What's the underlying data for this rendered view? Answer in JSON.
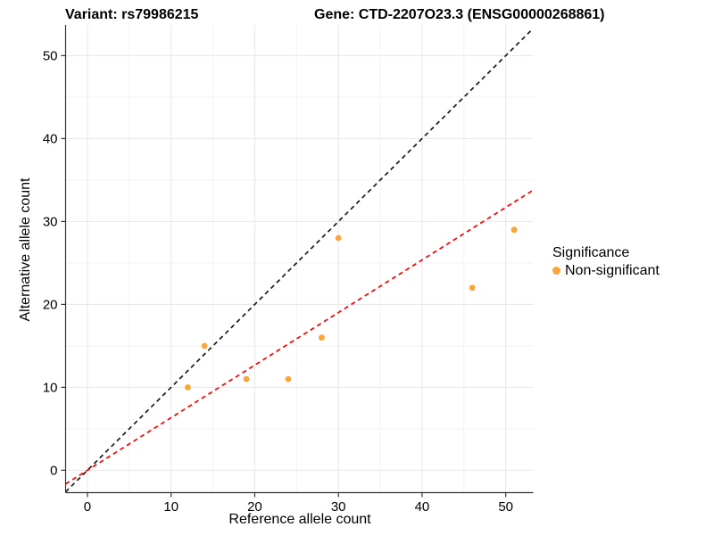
{
  "header": {
    "variant_title": "Variant: rs79986215",
    "gene_title": "Gene: CTD-2207O23.3 (ENSG00000268861)"
  },
  "legend": {
    "title": "Significance",
    "items": [
      {
        "label": "Non-significant",
        "color": "#FAA43A"
      }
    ]
  },
  "chart_data": {
    "type": "scatter",
    "title": "Variant: rs79986215  /  Gene: CTD-2207O23.3 (ENSG00000268861)",
    "xlabel": "Reference allele count",
    "ylabel": "Alternative allele count",
    "xlim": [
      -2.61,
      53.29
    ],
    "ylim": [
      -2.7,
      53.7
    ],
    "x_ticks": [
      0,
      10,
      20,
      30,
      40,
      50
    ],
    "y_ticks": [
      0,
      10,
      20,
      30,
      40,
      50
    ],
    "x_minor": [
      5,
      15,
      25,
      35,
      45
    ],
    "y_minor": [
      5,
      15,
      25,
      35,
      45
    ],
    "grid": true,
    "legend_position": "right",
    "series": [
      {
        "name": "Non-significant",
        "color": "#FAA43A",
        "marker": "circle",
        "points": [
          [
            12,
            10
          ],
          [
            14,
            15
          ],
          [
            19,
            11
          ],
          [
            24,
            11
          ],
          [
            28,
            16
          ],
          [
            30,
            28
          ],
          [
            46,
            22
          ],
          [
            51,
            29
          ]
        ]
      }
    ],
    "reference_lines": [
      {
        "name": "identity-line",
        "slope": 1,
        "intercept": 0,
        "color": "#1A1A1A",
        "dash": "dashed"
      },
      {
        "name": "fitted-ratio-line",
        "slope": 0.634,
        "intercept": 0,
        "color": "#FF0000",
        "dash": "dashed"
      }
    ]
  },
  "colors": {
    "background": "#FFFFFF",
    "grid_major": "#E6E6E6",
    "grid_minor": "#F2F2F2",
    "axis_line": "#333333",
    "text": "#000000"
  }
}
